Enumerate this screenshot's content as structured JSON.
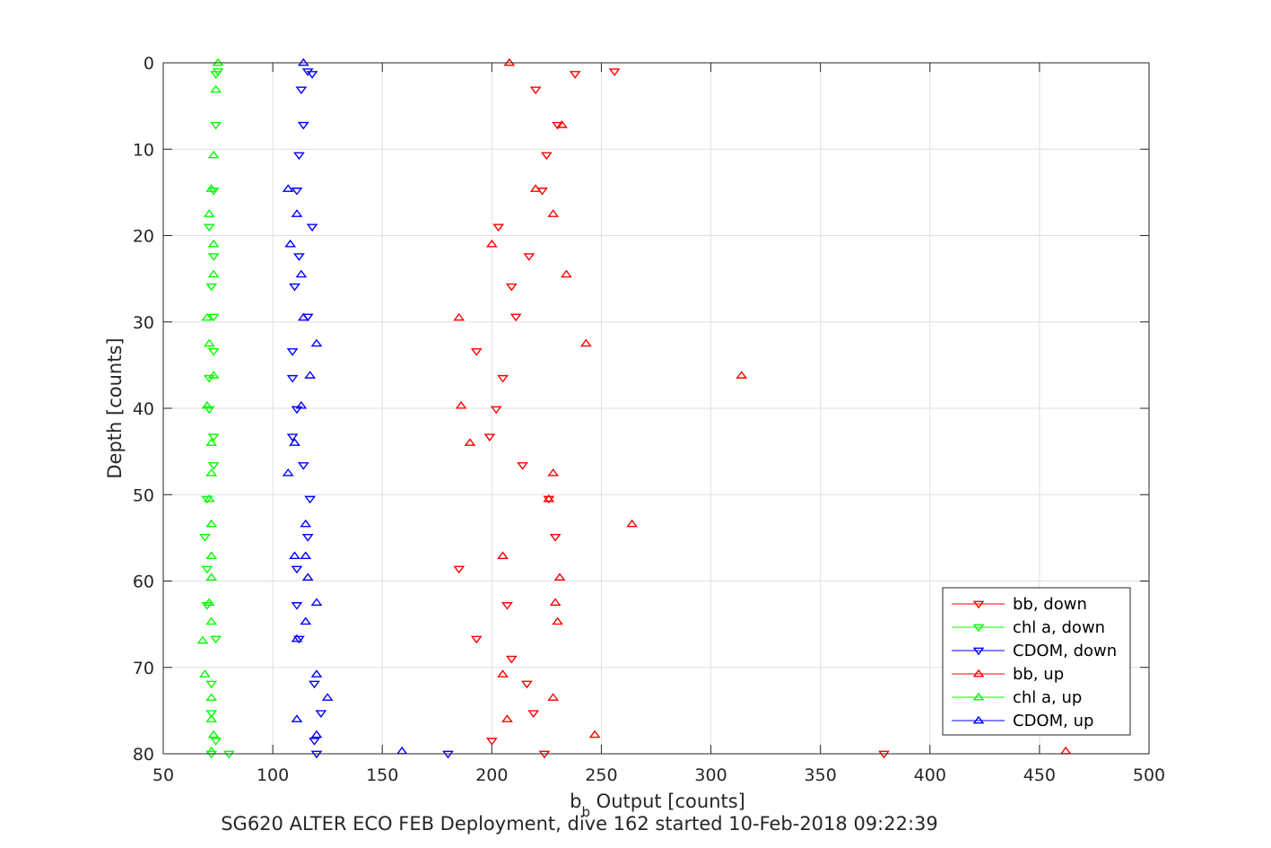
{
  "chart_data": {
    "type": "scatter",
    "title": "",
    "caption": "SG620 ALTER ECO FEB Deployment, dive 162 started 10-Feb-2018 09:22:39",
    "xlabel_main": "b",
    "xlabel_sub": "b",
    "xlabel_rest": " Output [counts]",
    "ylabel": "Depth [counts]",
    "xlim": [
      50,
      500
    ],
    "ylim": [
      0,
      80
    ],
    "y_reversed": true,
    "grid": true,
    "x_ticks": [
      50,
      100,
      150,
      200,
      250,
      300,
      350,
      400,
      450,
      500
    ],
    "y_ticks": [
      0,
      10,
      20,
      30,
      40,
      50,
      60,
      70,
      80
    ],
    "legend_position": "bottom-right",
    "series": [
      {
        "name": "bb, down",
        "color": "#ff0000",
        "marker": "triangle-down",
        "points": [
          [
            256,
            1
          ],
          [
            238,
            1.3
          ],
          [
            220,
            3.1
          ],
          [
            230,
            7.2
          ],
          [
            225,
            10.7
          ],
          [
            223,
            14.8
          ],
          [
            203,
            19
          ],
          [
            217,
            22.4
          ],
          [
            209,
            25.9
          ],
          [
            211,
            29.4
          ],
          [
            193,
            33.4
          ],
          [
            205,
            36.5
          ],
          [
            202,
            40.1
          ],
          [
            199,
            43.3
          ],
          [
            214,
            46.6
          ],
          [
            226,
            50.5
          ],
          [
            229,
            54.9
          ],
          [
            185,
            58.6
          ],
          [
            207,
            62.8
          ],
          [
            193,
            66.7
          ],
          [
            209,
            69
          ],
          [
            216,
            71.9
          ],
          [
            219,
            75.3
          ],
          [
            200,
            78.5
          ],
          [
            224,
            80
          ],
          [
            379,
            80
          ]
        ]
      },
      {
        "name": "chl a, down",
        "color": "#00ff00",
        "marker": "triangle-down",
        "points": [
          [
            75,
            1
          ],
          [
            74,
            1.3
          ],
          [
            74,
            7.2
          ],
          [
            73,
            14.8
          ],
          [
            71,
            19
          ],
          [
            73,
            22.4
          ],
          [
            72,
            25.9
          ],
          [
            73,
            29.4
          ],
          [
            73,
            33.4
          ],
          [
            71,
            36.5
          ],
          [
            71,
            40.1
          ],
          [
            73,
            43.3
          ],
          [
            73,
            46.6
          ],
          [
            70,
            50.5
          ],
          [
            69,
            54.9
          ],
          [
            70,
            58.6
          ],
          [
            70,
            62.8
          ],
          [
            74,
            66.7
          ],
          [
            72,
            71.9
          ],
          [
            72,
            75.3
          ],
          [
            74,
            78.5
          ],
          [
            72,
            80
          ],
          [
            80,
            80
          ]
        ]
      },
      {
        "name": "CDOM, down",
        "color": "#0000ff",
        "marker": "triangle-down",
        "points": [
          [
            116,
            1
          ],
          [
            118,
            1.3
          ],
          [
            113,
            3.1
          ],
          [
            114,
            7.2
          ],
          [
            112,
            10.7
          ],
          [
            111,
            14.8
          ],
          [
            118,
            19
          ],
          [
            112,
            22.4
          ],
          [
            110,
            25.9
          ],
          [
            116,
            29.4
          ],
          [
            109,
            33.4
          ],
          [
            109,
            36.5
          ],
          [
            111,
            40.1
          ],
          [
            109,
            43.3
          ],
          [
            114,
            46.6
          ],
          [
            117,
            50.5
          ],
          [
            116,
            54.9
          ],
          [
            111,
            58.6
          ],
          [
            111,
            62.8
          ],
          [
            112,
            66.7
          ],
          [
            119,
            71.9
          ],
          [
            122,
            75.3
          ],
          [
            119,
            78.5
          ],
          [
            120,
            80
          ],
          [
            180,
            80
          ]
        ]
      },
      {
        "name": "bb, up",
        "color": "#ff0000",
        "marker": "triangle-up",
        "points": [
          [
            208,
            0
          ],
          [
            232,
            7.2
          ],
          [
            228,
            17.5
          ],
          [
            200,
            21
          ],
          [
            234,
            24.5
          ],
          [
            185,
            29.5
          ],
          [
            243,
            32.5
          ],
          [
            314,
            36.2
          ],
          [
            186,
            39.7
          ],
          [
            190,
            44
          ],
          [
            228,
            47.5
          ],
          [
            226,
            50.5
          ],
          [
            264,
            53.4
          ],
          [
            205,
            57.1
          ],
          [
            231,
            59.6
          ],
          [
            229,
            62.5
          ],
          [
            230,
            64.7
          ],
          [
            205,
            70.8
          ],
          [
            228,
            73.5
          ],
          [
            207,
            76
          ],
          [
            247,
            77.8
          ],
          [
            462,
            79.7
          ],
          [
            220,
            14.6
          ]
        ]
      },
      {
        "name": "chl a, up",
        "color": "#00ff00",
        "marker": "triangle-up",
        "points": [
          [
            75,
            0
          ],
          [
            74,
            3.1
          ],
          [
            73,
            10.7
          ],
          [
            72,
            14.6
          ],
          [
            71,
            17.5
          ],
          [
            73,
            21
          ],
          [
            73,
            24.5
          ],
          [
            70,
            29.5
          ],
          [
            71,
            32.5
          ],
          [
            73,
            36.2
          ],
          [
            70,
            39.7
          ],
          [
            72,
            44
          ],
          [
            72,
            47.5
          ],
          [
            71,
            50.5
          ],
          [
            72,
            53.4
          ],
          [
            72,
            57.1
          ],
          [
            72,
            59.6
          ],
          [
            71,
            62.5
          ],
          [
            72,
            64.7
          ],
          [
            68,
            66.9
          ],
          [
            69,
            70.8
          ],
          [
            72,
            73.5
          ],
          [
            72,
            76
          ],
          [
            73,
            77.8
          ],
          [
            72,
            79.7
          ]
        ]
      },
      {
        "name": "CDOM, up",
        "color": "#0000ff",
        "marker": "triangle-up",
        "points": [
          [
            114,
            0
          ],
          [
            107,
            14.6
          ],
          [
            111,
            17.5
          ],
          [
            108,
            21
          ],
          [
            113,
            24.5
          ],
          [
            114,
            29.5
          ],
          [
            120,
            32.5
          ],
          [
            117,
            36.2
          ],
          [
            113,
            39.7
          ],
          [
            110,
            44
          ],
          [
            107,
            47.5
          ],
          [
            115,
            53.4
          ],
          [
            115,
            57.1
          ],
          [
            110,
            57.1
          ],
          [
            116,
            59.6
          ],
          [
            120,
            62.5
          ],
          [
            115,
            64.7
          ],
          [
            111,
            66.7
          ],
          [
            120,
            70.8
          ],
          [
            125,
            73.5
          ],
          [
            111,
            76
          ],
          [
            120,
            77.8
          ],
          [
            159,
            79.7
          ]
        ]
      }
    ]
  }
}
